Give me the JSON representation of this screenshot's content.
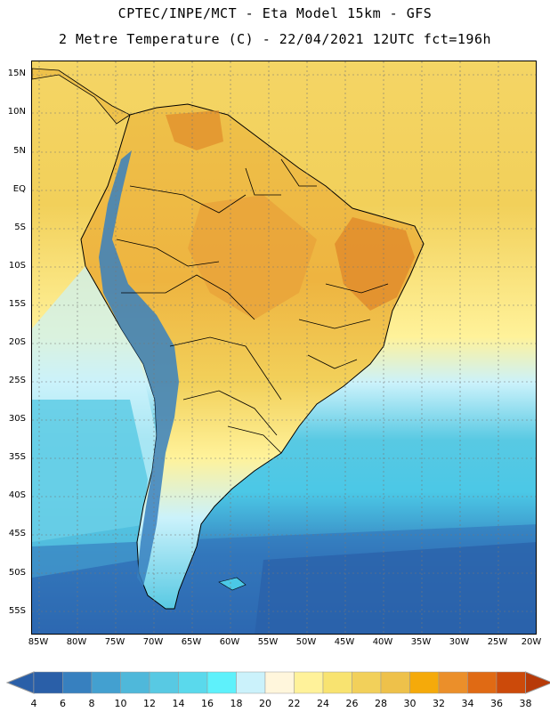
{
  "header": {
    "title_line1": "CPTEC/INPE/MCT -  Eta Model 15km - GFS",
    "title_line2": "2 Metre Temperature (C) - 22/04/2021 12UTC fct=196h"
  },
  "map": {
    "lat_labels": [
      "15N",
      "10N",
      "5N",
      "EQ",
      "5S",
      "10S",
      "15S",
      "20S",
      "25S",
      "30S",
      "35S",
      "40S",
      "45S",
      "50S",
      "55S"
    ],
    "lon_labels": [
      "85W",
      "80W",
      "75W",
      "70W",
      "65W",
      "60W",
      "55W",
      "50W",
      "45W",
      "40W",
      "35W",
      "30W",
      "25W",
      "20W"
    ],
    "gridlines": "dotted",
    "colors": {
      "ocean_south": "#2f6fb8",
      "ocean_mid": "#4bc8e6",
      "ocean_cold_band": "#6fe3f3",
      "ocean_tropical": "#f2d05a",
      "land_hot": "#e59a2f",
      "land_warm": "#f0c24a",
      "andes": "#2d6fae",
      "border": "#000000"
    }
  },
  "colorbar": {
    "labels": [
      "4",
      "6",
      "8",
      "10",
      "12",
      "14",
      "16",
      "18",
      "20",
      "22",
      "24",
      "26",
      "28",
      "30",
      "32",
      "34",
      "36",
      "38"
    ],
    "colors": [
      "#2a5fa8",
      "#3780bf",
      "#43a0d0",
      "#4fb8da",
      "#58c9e3",
      "#5ad9ec",
      "#5ef1fb",
      "#cbf2fb",
      "#fff6dc",
      "#fff29a",
      "#f8e370",
      "#f2d05a",
      "#eec14a",
      "#f5aa0a",
      "#eb8f2a",
      "#e06a14",
      "#cc4a0a",
      "#b73a08"
    ]
  }
}
